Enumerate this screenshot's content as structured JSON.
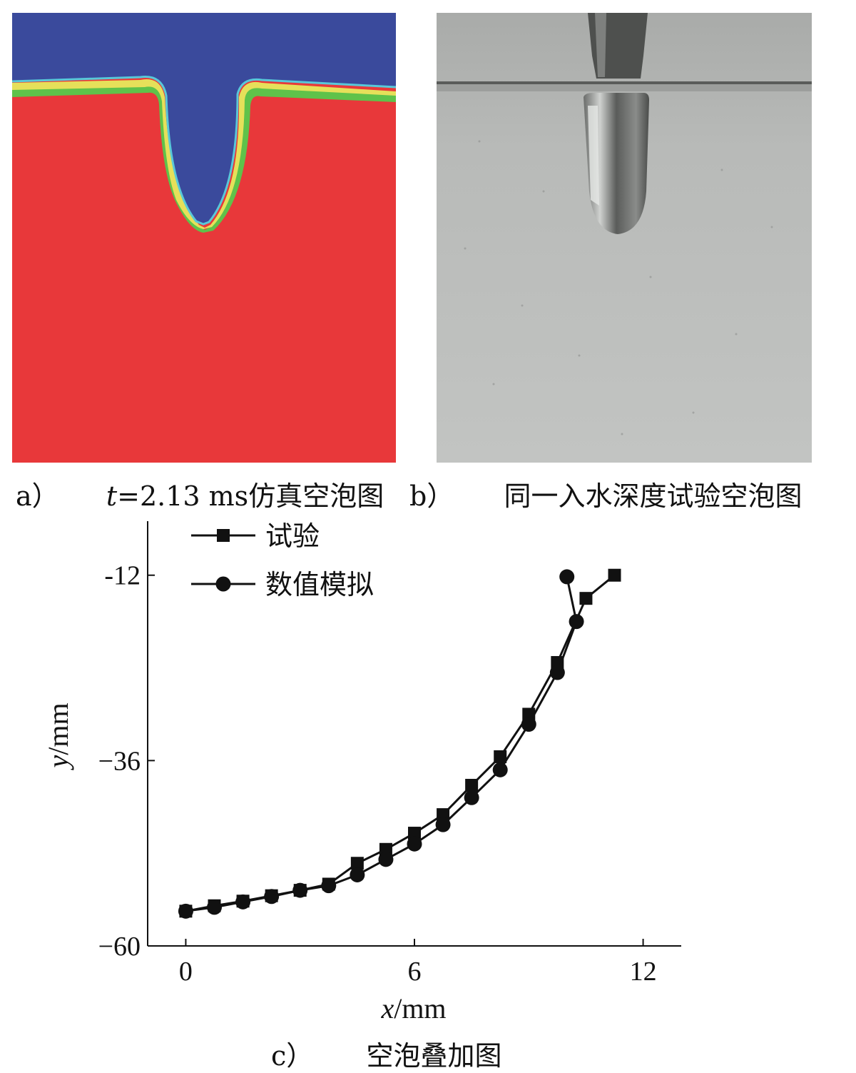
{
  "panels": {
    "a": {
      "letter": "a）",
      "title_t": "t",
      "title_rest": "=2.13 ms仿真空泡图"
    },
    "b": {
      "letter": "b）",
      "title": "同一入水深度试验空泡图"
    },
    "c": {
      "letter": "c）",
      "title": "空泡叠加图"
    }
  },
  "colors": {
    "simulation_air": "#3a4a9c",
    "simulation_water": "#e8383a",
    "interface_green": "#5fc24a",
    "photo_bg": "#b4b6b4",
    "line": "#111111"
  },
  "chart_data": {
    "type": "line",
    "xlabel_var": "x",
    "xlabel_unit": "/mm",
    "ylabel_var": "y",
    "ylabel_unit": "/mm",
    "xlim": [
      -1,
      13
    ],
    "ylim": [
      -60,
      -5
    ],
    "xticks": [
      0,
      6,
      12
    ],
    "yticks": [
      -12,
      -36,
      -60
    ],
    "xtick_labels": [
      "0",
      "6",
      "12"
    ],
    "ytick_labels": [
      "-12",
      "−36",
      "−60"
    ],
    "legend_position": "top-left",
    "series": [
      {
        "name": "试验",
        "marker": "square",
        "x": [
          0,
          0.75,
          1.5,
          2.25,
          3.0,
          3.75,
          4.5,
          5.25,
          6.0,
          6.75,
          7.5,
          8.25,
          9.0,
          9.75,
          10.5,
          11.25
        ],
        "y": [
          -55.5,
          -54.8,
          -54.2,
          -53.5,
          -52.8,
          -52.0,
          -49.3,
          -47.5,
          -45.4,
          -43.0,
          -39.2,
          -35.5,
          -30.0,
          -23.3,
          -15.0,
          -12.0
        ]
      },
      {
        "name": "数值模拟",
        "marker": "circle",
        "x": [
          0,
          0.75,
          1.5,
          2.25,
          3.0,
          3.75,
          4.5,
          5.25,
          6.0,
          6.75,
          7.5,
          8.25,
          9.0,
          9.75,
          10.25,
          10.0
        ],
        "y": [
          -55.5,
          -55.0,
          -54.3,
          -53.6,
          -52.8,
          -52.2,
          -50.8,
          -48.8,
          -46.8,
          -44.3,
          -40.8,
          -37.2,
          -31.3,
          -24.6,
          -18.0,
          -12.2
        ]
      }
    ]
  }
}
